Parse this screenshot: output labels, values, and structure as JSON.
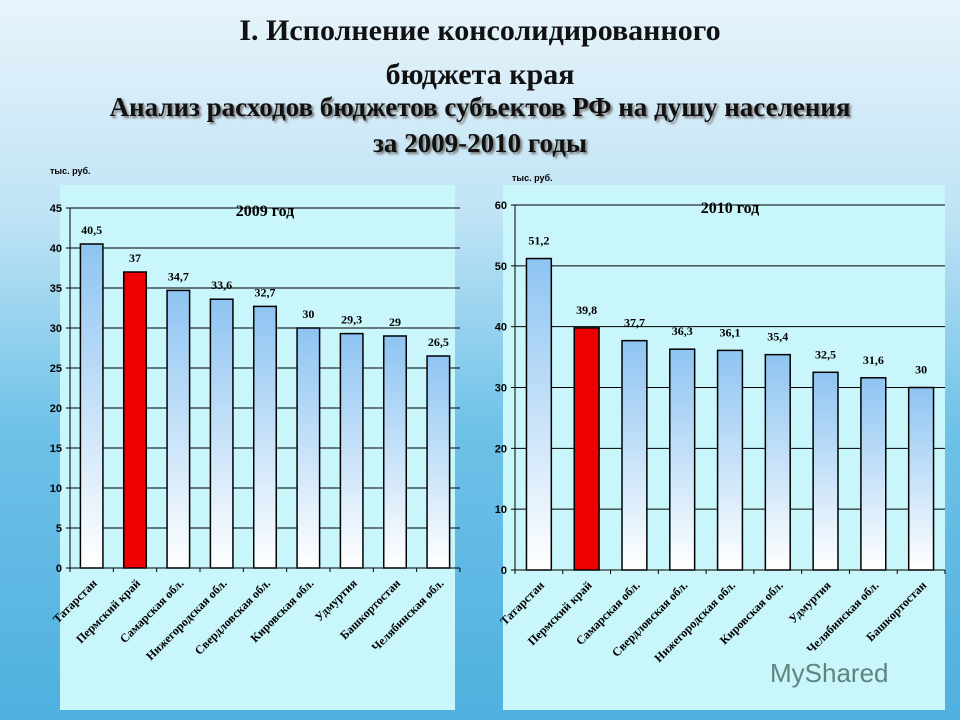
{
  "title_line1": "I. Исполнение консолидированного",
  "title_line2": "бюджета края",
  "subtitle_line1": "Анализ расходов бюджетов субъектов РФ на душу населения",
  "subtitle_line2": "за 2009-2010 годы",
  "watermark": "MyShared",
  "colors": {
    "highlight": "#ee0000",
    "bar_top": "#8ec4f2",
    "bar_bottom": "#ffffff",
    "panel": "#c9f6fa"
  },
  "chart_data": [
    {
      "type": "bar",
      "title": "2009 год",
      "ylabel": "тыс. руб.",
      "ylim": [
        0,
        45
      ],
      "yticks": [
        0,
        5,
        10,
        15,
        20,
        25,
        30,
        35,
        40,
        45
      ],
      "grid": true,
      "categories": [
        "Татарстан",
        "Пермский край",
        "Самарская обл.",
        "Нижегородская обл.",
        "Свердловская обл.",
        "Кировская обл.",
        "Удмуртия",
        "Башкортостан",
        "Челябинская обл."
      ],
      "values": [
        40.5,
        37,
        34.7,
        33.6,
        32.7,
        30,
        29.3,
        29,
        26.5
      ],
      "labels": [
        "40,5",
        "37",
        "34,7",
        "33,6",
        "32,7",
        "30",
        "29,3",
        "29",
        "26,5"
      ],
      "highlight_index": 1
    },
    {
      "type": "bar",
      "title": "2010 год",
      "ylabel": "тыс. руб.",
      "ylim": [
        0,
        60
      ],
      "yticks": [
        0,
        10,
        20,
        30,
        40,
        50,
        60
      ],
      "grid": true,
      "categories": [
        "Татарстан",
        "Пермский край",
        "Самарская обл.",
        "Свердловская обл.",
        "Нижегородская обл.",
        "Кировская обл.",
        "Удмуртия",
        "Челябинская обл.",
        "Башкортостан"
      ],
      "values": [
        51.2,
        39.8,
        37.7,
        36.3,
        36.1,
        35.4,
        32.5,
        31.6,
        30
      ],
      "labels": [
        "51,2",
        "39,8",
        "37,7",
        "36,3",
        "36,1",
        "35,4",
        "32,5",
        "31,6",
        "30"
      ],
      "highlight_index": 1
    }
  ]
}
